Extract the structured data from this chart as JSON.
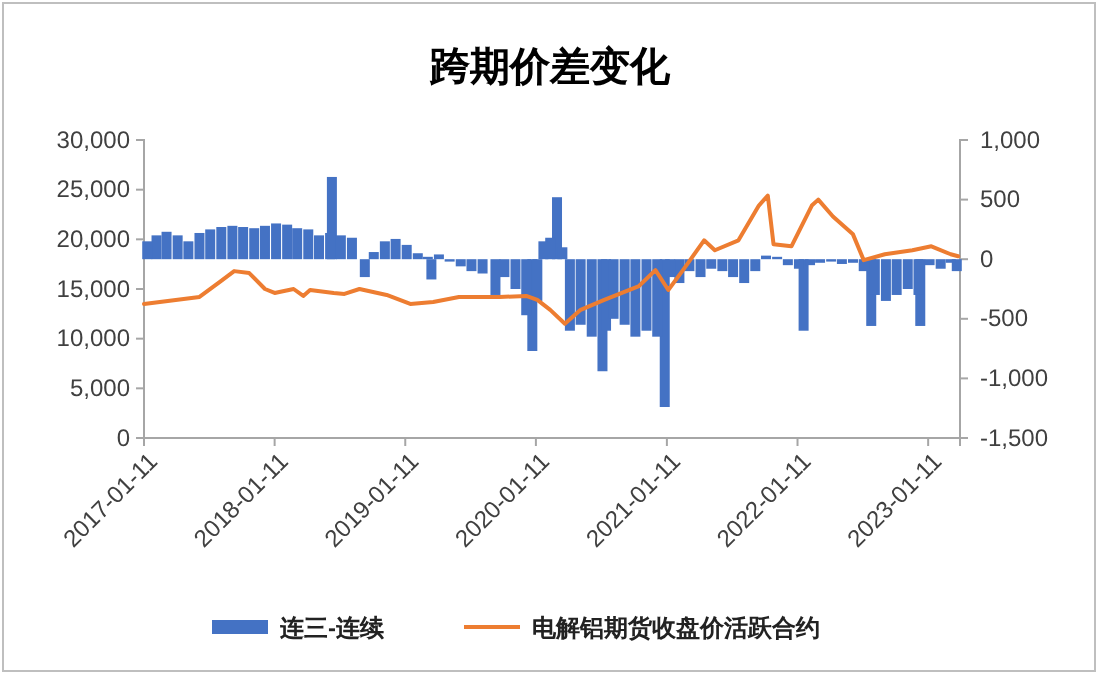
{
  "chart_data": {
    "type": "bar",
    "title": "跨期价差变化",
    "legend": "bottom",
    "grid": false,
    "xlim": [
      "2017-01-11",
      "2023-04-10"
    ],
    "xticks": [
      "2017-01-11",
      "2018-01-11",
      "2019-01-11",
      "2020-01-11",
      "2021-01-11",
      "2022-01-11",
      "2023-01-11"
    ],
    "ylim": [
      0,
      30000
    ],
    "yticks": [
      {
        "value": 0,
        "label": "0"
      },
      {
        "value": 5000,
        "label": "5,000"
      },
      {
        "value": 10000,
        "label": "10,000"
      },
      {
        "value": 15000,
        "label": "15,000"
      },
      {
        "value": 20000,
        "label": "20,000"
      },
      {
        "value": 25000,
        "label": "25,000"
      },
      {
        "value": 30000,
        "label": "30,000"
      }
    ],
    "y2lim": [
      -1500,
      1000
    ],
    "y2ticks": [
      {
        "value": -1500,
        "label": "-1,500"
      },
      {
        "value": -1000,
        "label": "-1,000"
      },
      {
        "value": -500,
        "label": "-500"
      },
      {
        "value": 0,
        "label": "0"
      },
      {
        "value": 500,
        "label": "500"
      },
      {
        "value": 1000,
        "label": "1,000"
      }
    ],
    "series": [
      {
        "name": "连三-连续",
        "axis": "y2",
        "color": "#4472c4",
        "x": [
          "2017-01-20",
          "2017-02-15",
          "2017-03-15",
          "2017-04-15",
          "2017-05-15",
          "2017-06-15",
          "2017-07-15",
          "2017-08-15",
          "2017-09-15",
          "2017-10-15",
          "2017-11-15",
          "2017-12-15",
          "2018-01-15",
          "2018-02-15",
          "2018-03-15",
          "2018-04-15",
          "2018-05-15",
          "2018-06-15",
          "2018-06-20",
          "2018-07-15",
          "2018-08-15",
          "2018-09-20",
          "2018-10-15",
          "2018-11-15",
          "2018-12-15",
          "2019-01-15",
          "2019-02-15",
          "2019-03-15",
          "2019-03-25",
          "2019-04-15",
          "2019-05-15",
          "2019-06-15",
          "2019-07-15",
          "2019-08-15",
          "2019-09-20",
          "2019-10-15",
          "2019-11-15",
          "2019-12-15",
          "2020-01-01",
          "2020-01-15",
          "2020-02-01",
          "2020-02-20",
          "2020-03-10",
          "2020-03-25",
          "2020-04-15",
          "2020-05-15",
          "2020-06-15",
          "2020-07-15",
          "2020-07-25",
          "2020-08-15",
          "2020-09-15",
          "2020-10-15",
          "2020-11-15",
          "2020-12-15",
          "2021-01-05",
          "2021-01-20",
          "2021-02-15",
          "2021-03-15",
          "2021-04-15",
          "2021-05-15",
          "2021-06-15",
          "2021-07-15",
          "2021-08-15",
          "2021-09-15",
          "2021-10-15",
          "2021-11-15",
          "2021-12-15",
          "2022-01-15",
          "2022-01-28",
          "2022-02-15",
          "2022-03-15",
          "2022-04-15",
          "2022-05-15",
          "2022-06-15",
          "2022-07-15",
          "2022-08-05",
          "2022-08-15",
          "2022-09-15",
          "2022-10-15",
          "2022-11-15",
          "2022-12-15",
          "2022-12-20",
          "2023-01-15",
          "2023-02-15",
          "2023-03-15",
          "2023-04-01"
        ],
        "values": [
          150,
          200,
          230,
          200,
          150,
          220,
          250,
          270,
          280,
          270,
          260,
          280,
          300,
          290,
          260,
          250,
          200,
          220,
          690,
          200,
          180,
          -150,
          60,
          150,
          170,
          120,
          50,
          20,
          -170,
          40,
          -20,
          -60,
          -100,
          -120,
          -300,
          -150,
          -250,
          -470,
          -770,
          -350,
          150,
          180,
          520,
          100,
          -600,
          -550,
          -650,
          -940,
          -600,
          -500,
          -550,
          -650,
          -600,
          -650,
          -1240,
          -150,
          -200,
          -100,
          -150,
          -80,
          -100,
          -150,
          -200,
          -100,
          30,
          20,
          -50,
          -80,
          -600,
          -50,
          -30,
          -20,
          -40,
          -30,
          -100,
          -560,
          -300,
          -350,
          -300,
          -250,
          -300,
          -560,
          -50,
          -80,
          -30,
          -100
        ]
      },
      {
        "name": "电解铝期货收盘价活跃合约",
        "type": "line",
        "axis": "y",
        "color": "#ed7d31",
        "x": [
          "2017-01-11",
          "2017-06-15",
          "2017-08-10",
          "2017-09-20",
          "2017-11-01",
          "2017-12-15",
          "2018-01-11",
          "2018-03-05",
          "2018-04-01",
          "2018-04-20",
          "2018-06-25",
          "2018-07-25",
          "2018-09-05",
          "2018-11-20",
          "2019-01-25",
          "2019-03-30",
          "2019-06-10",
          "2019-10-01",
          "2019-12-15",
          "2020-01-15",
          "2020-02-20",
          "2020-04-01",
          "2020-05-15",
          "2020-07-20",
          "2020-10-25",
          "2020-12-10",
          "2021-01-15",
          "2021-02-25",
          "2021-04-25",
          "2021-05-25",
          "2021-07-30",
          "2021-09-25",
          "2021-10-20",
          "2021-11-05",
          "2021-12-25",
          "2022-02-20",
          "2022-03-10",
          "2022-04-20",
          "2022-06-15",
          "2022-07-15",
          "2022-09-12",
          "2022-11-28",
          "2023-01-20",
          "2023-03-15",
          "2023-04-05"
        ],
        "values": [
          13500,
          14200,
          15700,
          16800,
          16600,
          15000,
          14600,
          15000,
          14300,
          14900,
          14600,
          14500,
          15000,
          14400,
          13500,
          13700,
          14200,
          14200,
          14300,
          13900,
          12900,
          11500,
          12900,
          13900,
          15300,
          16900,
          14900,
          16900,
          19900,
          18900,
          19900,
          23400,
          24400,
          19500,
          19300,
          23400,
          24000,
          22300,
          20500,
          17900,
          18500,
          18900,
          19300,
          18500,
          18300
        ]
      }
    ]
  }
}
